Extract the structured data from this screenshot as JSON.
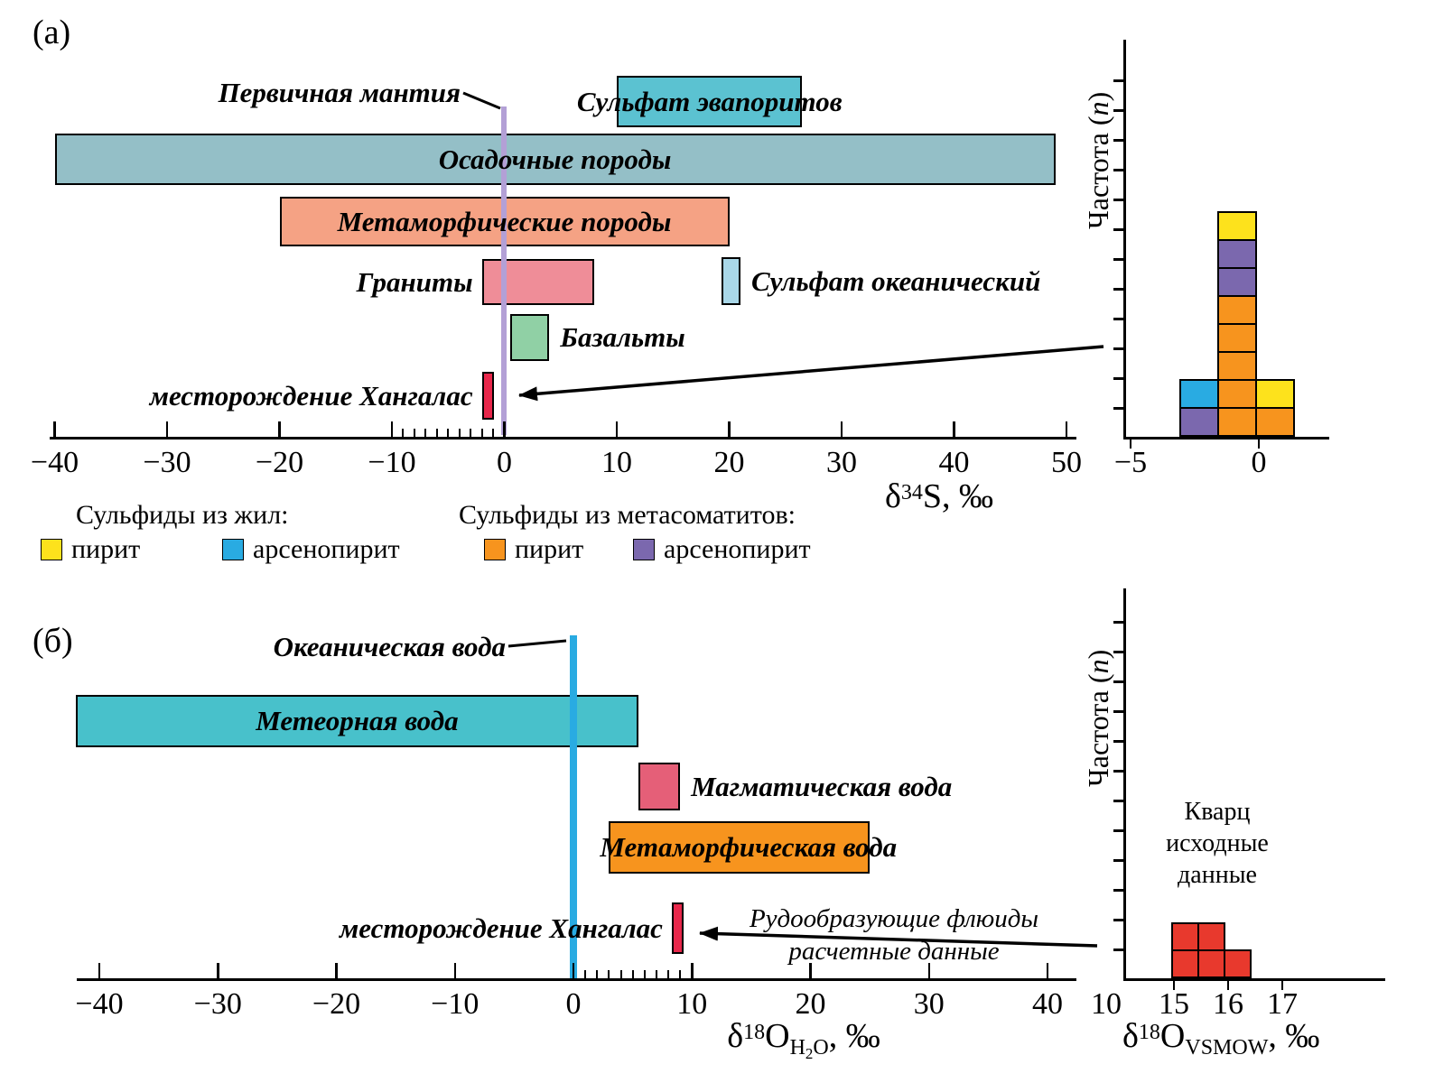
{
  "figure": {
    "panel_a_tag": "(а)",
    "panel_b_tag": "(б)"
  },
  "labels": {
    "freq": {
      "pre": "Частота (",
      "n": "n",
      "post": ")"
    },
    "axis_a": {
      "d": "δ",
      "sup": "34",
      "rest": "S, ‰"
    },
    "axis_b": {
      "d": "δ",
      "sup": "18",
      "o": "O",
      "subH": "H",
      "sub2": "2",
      "subO": "O",
      "tail": ", ‰"
    },
    "axis_bh": {
      "d": "δ",
      "sup": "18",
      "o": "O",
      "sub": "VSMOW",
      "tail": ", ‰"
    }
  },
  "legend": {
    "group1_title": "Сульфиды из жил:",
    "group2_title": "Сульфиды из метасоматитов:",
    "items": [
      {
        "key": "pyrite_vein",
        "label": "пирит",
        "color": "#FDE21C"
      },
      {
        "key": "arsenopyrite_vein",
        "label": "арсенопирит",
        "color": "#29ABE2"
      },
      {
        "key": "pyrite_metasomatite",
        "label": "пирит",
        "color": "#F7941E"
      },
      {
        "key": "arsenopyrite_metasomatite",
        "label": "арсенопирит",
        "color": "#7B68AE"
      }
    ]
  },
  "chart_data": [
    {
      "id": "a_ranges",
      "type": "bar",
      "xlabel": "δ34S, ‰",
      "xlim": [
        -40,
        50
      ],
      "x_ticks": [
        "−40",
        "−30",
        "−20",
        "−10",
        "0",
        "10",
        "20",
        "30",
        "40",
        "50"
      ],
      "minor_ticks": [
        -9,
        -8,
        -7,
        -6,
        -5,
        -4,
        -3,
        -2,
        -1
      ],
      "reference_line": {
        "label": "Первичная мантия",
        "x": 0,
        "color": "#B3A0D6"
      },
      "bars": [
        {
          "id": "evaporite_sulfate",
          "label": "Сульфат эвапоритов",
          "from": 10,
          "to": 26.5,
          "color": "#5BC2D1",
          "label_pos": "inside"
        },
        {
          "id": "sedimentary",
          "label": "Осадочные породы",
          "from": -40,
          "to": 49,
          "color": "#94BFC7",
          "label_pos": "inside"
        },
        {
          "id": "metamorphic",
          "label": "Метаморфические породы",
          "from": -20,
          "to": 20,
          "color": "#F5A284",
          "label_pos": "inside"
        },
        {
          "id": "granites",
          "label": "Граниты",
          "from": -2,
          "to": 8,
          "color": "#EF8D98",
          "label_pos": "left"
        },
        {
          "id": "oceanic_sulfate",
          "label": "Сульфат океанический",
          "from": 19.3,
          "to": 21,
          "color": "#A9D7E8",
          "label_pos": "right"
        },
        {
          "id": "basalts",
          "label": "Базальты",
          "from": 0.5,
          "to": 4,
          "color": "#90D0A5",
          "label_pos": "right"
        },
        {
          "id": "khangalas",
          "label": "месторождение Хангалас",
          "from": -2,
          "to": -1,
          "color": "#E8274B",
          "label_pos": "left"
        }
      ]
    },
    {
      "id": "a_hist",
      "type": "bar",
      "ylabel": "Частота (n)",
      "x_ticks": [
        "−5",
        "0"
      ],
      "columns": [
        {
          "range": [
            -3,
            -2
          ],
          "cells": [
            "arsenopyrite_metasomatite",
            "arsenopyrite_vein"
          ]
        },
        {
          "range": [
            -2,
            -1
          ],
          "cells": [
            "pyrite_metasomatite",
            "pyrite_metasomatite",
            "pyrite_metasomatite",
            "pyrite_metasomatite",
            "pyrite_metasomatite",
            "arsenopyrite_metasomatite",
            "arsenopyrite_metasomatite",
            "pyrite_vein"
          ]
        },
        {
          "range": [
            -1,
            0
          ],
          "cells": [
            "pyrite_metasomatite",
            "pyrite_vein"
          ]
        }
      ]
    },
    {
      "id": "b_ranges",
      "type": "bar",
      "xlabel": "δ18OH2O, ‰",
      "xlim": [
        -40,
        40
      ],
      "x_ticks": [
        "−40",
        "−30",
        "−20",
        "−10",
        "0",
        "10",
        "20",
        "30",
        "40"
      ],
      "minor_ticks": [
        1,
        2,
        3,
        4,
        5,
        6,
        7,
        8,
        9
      ],
      "reference_line": {
        "label": "Океаническая вода",
        "x": 0,
        "color": "#29ABE2"
      },
      "annotation": {
        "line1": "Рудообразующие флюиды",
        "line2": "расчетные данные"
      },
      "bars": [
        {
          "id": "meteoric",
          "label": "Метеорная вода",
          "from": -42,
          "to": 5.5,
          "color": "#48C1CB",
          "label_pos": "inside"
        },
        {
          "id": "magmatic",
          "label": "Магматическая вода",
          "from": 5.5,
          "to": 9,
          "color": "#E55F78",
          "label_pos": "right"
        },
        {
          "id": "metamorphic_water",
          "label": "Метаморфическая вода",
          "from": 3,
          "to": 25,
          "color": "#F7941E",
          "label_pos": "overflow"
        },
        {
          "id": "khangalas_b",
          "label": "месторождение Хангалас",
          "from": 8.3,
          "to": 9.2,
          "color": "#E8274B",
          "label_pos": "left"
        }
      ]
    },
    {
      "id": "b_hist",
      "type": "bar",
      "ylabel": "Частота (n)",
      "title_lines": [
        "Кварц",
        "исходные",
        "данные"
      ],
      "xlabel": "δ18OVSMOW, ‰",
      "corner_tick": "10",
      "x_ticks": [
        "15",
        "16",
        "17"
      ],
      "color": "#E8392D",
      "columns": [
        {
          "range": [
            15.0,
            15.5
          ],
          "count": 2
        },
        {
          "range": [
            15.5,
            16.0
          ],
          "count": 2
        },
        {
          "range": [
            16.0,
            16.5
          ],
          "count": 1
        }
      ]
    }
  ]
}
